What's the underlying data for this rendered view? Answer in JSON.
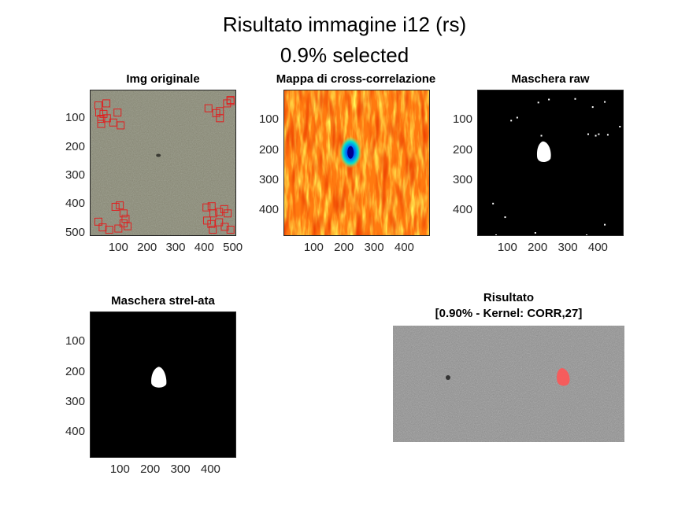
{
  "figure": {
    "title": "Risultato immagine i12 (rs)",
    "subtitle": "0.9% selected"
  },
  "chart_data": [
    {
      "type": "heatmap",
      "id": "img-originale",
      "title": "Img originale",
      "xlim": [
        0,
        512
      ],
      "ylim": [
        0,
        512
      ],
      "xticks": [
        100,
        200,
        300,
        400,
        500
      ],
      "yticks": [
        100,
        200,
        300,
        400,
        500
      ],
      "y_reversed": true,
      "color": "#8a8a78",
      "dark_spot": {
        "x": 240,
        "y": 230
      },
      "boxes": [
        [
          30,
          55
        ],
        [
          58,
          48
        ],
        [
          33,
          80
        ],
        [
          48,
          85
        ],
        [
          40,
          102
        ],
        [
          60,
          100
        ],
        [
          97,
          80
        ],
        [
          82,
          115
        ],
        [
          108,
          125
        ],
        [
          40,
          120
        ],
        [
          415,
          65
        ],
        [
          442,
          82
        ],
        [
          455,
          75
        ],
        [
          480,
          48
        ],
        [
          492,
          36
        ],
        [
          455,
          100
        ],
        [
          492,
          40
        ],
        [
          90,
          410
        ],
        [
          105,
          405
        ],
        [
          118,
          433
        ],
        [
          125,
          452
        ],
        [
          118,
          468
        ],
        [
          132,
          478
        ],
        [
          100,
          486
        ],
        [
          30,
          462
        ],
        [
          45,
          482
        ],
        [
          68,
          490
        ],
        [
          408,
          412
        ],
        [
          426,
          408
        ],
        [
          432,
          433
        ],
        [
          452,
          428
        ],
        [
          470,
          418
        ],
        [
          482,
          433
        ],
        [
          410,
          458
        ],
        [
          425,
          470
        ],
        [
          452,
          464
        ],
        [
          472,
          480
        ],
        [
          492,
          490
        ],
        [
          430,
          490
        ]
      ]
    },
    {
      "type": "heatmap",
      "id": "mappa-cross",
      "title": "Mappa di cross-correlazione",
      "xlim": [
        0,
        485
      ],
      "ylim": [
        0,
        485
      ],
      "xticks": [
        100,
        200,
        300,
        400
      ],
      "yticks": [
        100,
        200,
        300,
        400
      ],
      "y_reversed": true,
      "colormap": "jet",
      "min_spot": {
        "x": 222,
        "y": 208
      }
    },
    {
      "type": "heatmap",
      "id": "maschera-raw",
      "title": "Maschera raw",
      "xlim": [
        0,
        485
      ],
      "ylim": [
        0,
        485
      ],
      "xticks": [
        100,
        200,
        300,
        400
      ],
      "yticks": [
        100,
        200,
        300,
        400
      ],
      "y_reversed": true,
      "blob": {
        "x": 222,
        "y": 208
      },
      "specks": [
        [
          130,
          90
        ],
        [
          200,
          40
        ],
        [
          235,
          30
        ],
        [
          322,
          28
        ],
        [
          380,
          55
        ],
        [
          420,
          38
        ],
        [
          110,
          100
        ],
        [
          365,
          145
        ],
        [
          390,
          150
        ],
        [
          400,
          145
        ],
        [
          430,
          147
        ],
        [
          50,
          375
        ],
        [
          90,
          420
        ],
        [
          60,
          480
        ],
        [
          190,
          472
        ],
        [
          360,
          480
        ],
        [
          420,
          445
        ],
        [
          470,
          120
        ],
        [
          210,
          150
        ]
      ]
    },
    {
      "type": "heatmap",
      "id": "maschera-strel",
      "title": "Maschera strel-ata",
      "xlim": [
        0,
        485
      ],
      "ylim": [
        0,
        485
      ],
      "xticks": [
        100,
        200,
        300,
        400
      ],
      "yticks": [
        100,
        200,
        300,
        400
      ],
      "y_reversed": true,
      "blob": {
        "x": 230,
        "y": 220
      }
    },
    {
      "type": "heatmap",
      "id": "risultato",
      "title": "Risultato",
      "subtitle": "[0.90% - Kernel: CORR,27]",
      "overlay_color": "#ff5555"
    }
  ]
}
